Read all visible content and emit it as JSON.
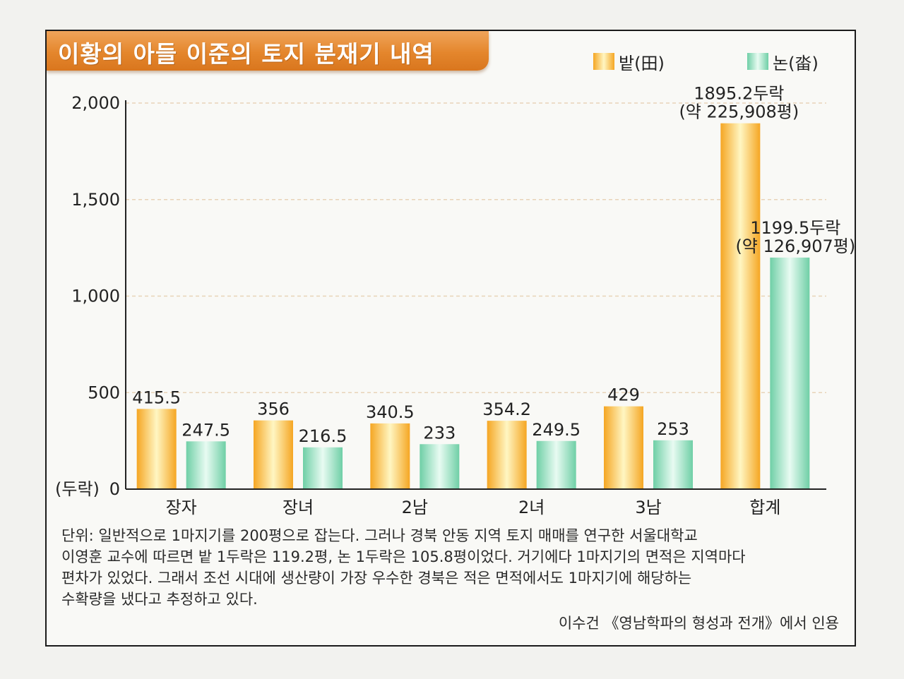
{
  "title": "이황의 아들 이준의 토지 분재기 내역",
  "legend": {
    "field": "밭(田)",
    "paddy": "논(畓)"
  },
  "colors": {
    "title_banner": "#e4862c",
    "field_bar_edge": "#f5a623",
    "field_bar_center": "#fff6c2",
    "paddy_bar_edge": "#6fcfa6",
    "paddy_bar_center": "#e8fbf2",
    "gridline": "#e8d3b8",
    "axis": "#222222"
  },
  "chart_data": {
    "type": "bar",
    "title": "이황의 아들 이준의 토지 분재기 내역",
    "ylabel": "(두락)",
    "xlabel": "",
    "ylim": [
      0,
      2000
    ],
    "yticks": [
      "2,000",
      "1,500",
      "1,000",
      "500",
      "0"
    ],
    "ytick_values": [
      2000,
      1500,
      1000,
      500,
      0
    ],
    "grid": true,
    "legend_position": "top-right",
    "categories": [
      "장자",
      "장녀",
      "2남",
      "2녀",
      "3남",
      "합계"
    ],
    "series": [
      {
        "name": "밭(田)",
        "values": [
          415.5,
          356,
          340.5,
          354.2,
          429,
          1895.2
        ],
        "labels": [
          "415.5",
          "356",
          "340.5",
          "354.2",
          "429",
          "1895.2두락"
        ]
      },
      {
        "name": "논(畓)",
        "values": [
          247.5,
          216.5,
          233,
          249.5,
          253,
          1199.5
        ],
        "labels": [
          "247.5",
          "216.5",
          "233",
          "249.5",
          "253",
          "1199.5두락"
        ]
      }
    ],
    "annotations": [
      {
        "series": 0,
        "category": "합계",
        "line2": "(약 225,908평)"
      },
      {
        "series": 1,
        "category": "합계",
        "line2": "(약 126,907평)"
      }
    ]
  },
  "footnote": {
    "lines": [
      "단위: 일반적으로 1마지기를 200평으로 잡는다. 그러나 경북 안동 지역 토지 매매를 연구한 서울대학교",
      "이영훈 교수에 따르면 밭 1두락은 119.2평, 논 1두락은 105.8평이었다. 거기에다 1마지기의 면적은 지역마다",
      "편차가 있었다. 그래서 조선 시대에 생산량이 가장 우수한 경북은 적은 면적에서도 1마지기에 해당하는",
      "수확량을 냈다고 추정하고 있다."
    ],
    "source": "이수건 《영남학파의 형성과 전개》에서 인용"
  }
}
